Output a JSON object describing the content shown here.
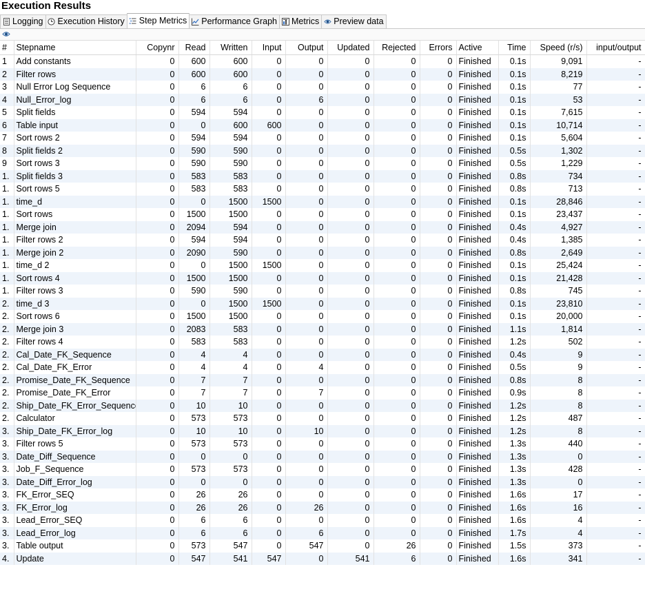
{
  "title": "Execution Results",
  "tabs": [
    {
      "label": "Logging",
      "icon": "logging-icon"
    },
    {
      "label": "Execution History",
      "icon": "history-icon"
    },
    {
      "label": "Step Metrics",
      "icon": "step-metrics-icon"
    },
    {
      "label": "Performance Graph",
      "icon": "graph-icon"
    },
    {
      "label": "Metrics",
      "icon": "metrics-icon"
    },
    {
      "label": "Preview data",
      "icon": "eye-icon"
    }
  ],
  "active_tab": "Step Metrics",
  "columns": [
    "#",
    "Stepname",
    "Copynr",
    "Read",
    "Written",
    "Input",
    "Output",
    "Updated",
    "Rejected",
    "Errors",
    "Active",
    "Time",
    "Speed (r/s)",
    "input/output"
  ],
  "rows": [
    [
      "1",
      "Add constants",
      "0",
      "600",
      "600",
      "0",
      "0",
      "0",
      "0",
      "0",
      "Finished",
      "0.1s",
      "9,091",
      "-"
    ],
    [
      "2",
      "Filter rows",
      "0",
      "600",
      "600",
      "0",
      "0",
      "0",
      "0",
      "0",
      "Finished",
      "0.1s",
      "8,219",
      "-"
    ],
    [
      "3",
      "Null Error Log Sequence",
      "0",
      "6",
      "6",
      "0",
      "0",
      "0",
      "0",
      "0",
      "Finished",
      "0.1s",
      "77",
      "-"
    ],
    [
      "4",
      "Null_Error_log",
      "0",
      "6",
      "6",
      "0",
      "6",
      "0",
      "0",
      "0",
      "Finished",
      "0.1s",
      "53",
      "-"
    ],
    [
      "5",
      "Split fields",
      "0",
      "594",
      "594",
      "0",
      "0",
      "0",
      "0",
      "0",
      "Finished",
      "0.1s",
      "7,615",
      "-"
    ],
    [
      "6",
      "Table input",
      "0",
      "0",
      "600",
      "600",
      "0",
      "0",
      "0",
      "0",
      "Finished",
      "0.1s",
      "10,714",
      "-"
    ],
    [
      "7",
      "Sort rows 2",
      "0",
      "594",
      "594",
      "0",
      "0",
      "0",
      "0",
      "0",
      "Finished",
      "0.1s",
      "5,604",
      "-"
    ],
    [
      "8",
      "Split fields 2",
      "0",
      "590",
      "590",
      "0",
      "0",
      "0",
      "0",
      "0",
      "Finished",
      "0.5s",
      "1,302",
      "-"
    ],
    [
      "9",
      "Sort rows 3",
      "0",
      "590",
      "590",
      "0",
      "0",
      "0",
      "0",
      "0",
      "Finished",
      "0.5s",
      "1,229",
      "-"
    ],
    [
      "1.",
      "Split fields 3",
      "0",
      "583",
      "583",
      "0",
      "0",
      "0",
      "0",
      "0",
      "Finished",
      "0.8s",
      "734",
      "-"
    ],
    [
      "1.",
      "Sort rows 5",
      "0",
      "583",
      "583",
      "0",
      "0",
      "0",
      "0",
      "0",
      "Finished",
      "0.8s",
      "713",
      "-"
    ],
    [
      "1.",
      "time_d",
      "0",
      "0",
      "1500",
      "1500",
      "0",
      "0",
      "0",
      "0",
      "Finished",
      "0.1s",
      "28,846",
      "-"
    ],
    [
      "1.",
      "Sort rows",
      "0",
      "1500",
      "1500",
      "0",
      "0",
      "0",
      "0",
      "0",
      "Finished",
      "0.1s",
      "23,437",
      "-"
    ],
    [
      "1.",
      "Merge join",
      "0",
      "2094",
      "594",
      "0",
      "0",
      "0",
      "0",
      "0",
      "Finished",
      "0.4s",
      "4,927",
      "-"
    ],
    [
      "1.",
      "Filter rows 2",
      "0",
      "594",
      "594",
      "0",
      "0",
      "0",
      "0",
      "0",
      "Finished",
      "0.4s",
      "1,385",
      "-"
    ],
    [
      "1.",
      "Merge join 2",
      "0",
      "2090",
      "590",
      "0",
      "0",
      "0",
      "0",
      "0",
      "Finished",
      "0.8s",
      "2,649",
      "-"
    ],
    [
      "1.",
      "time_d 2",
      "0",
      "0",
      "1500",
      "1500",
      "0",
      "0",
      "0",
      "0",
      "Finished",
      "0.1s",
      "25,424",
      "-"
    ],
    [
      "1.",
      "Sort rows 4",
      "0",
      "1500",
      "1500",
      "0",
      "0",
      "0",
      "0",
      "0",
      "Finished",
      "0.1s",
      "21,428",
      "-"
    ],
    [
      "1.",
      "Filter rows 3",
      "0",
      "590",
      "590",
      "0",
      "0",
      "0",
      "0",
      "0",
      "Finished",
      "0.8s",
      "745",
      "-"
    ],
    [
      "2.",
      "time_d 3",
      "0",
      "0",
      "1500",
      "1500",
      "0",
      "0",
      "0",
      "0",
      "Finished",
      "0.1s",
      "23,810",
      "-"
    ],
    [
      "2.",
      "Sort rows 6",
      "0",
      "1500",
      "1500",
      "0",
      "0",
      "0",
      "0",
      "0",
      "Finished",
      "0.1s",
      "20,000",
      "-"
    ],
    [
      "2.",
      "Merge join 3",
      "0",
      "2083",
      "583",
      "0",
      "0",
      "0",
      "0",
      "0",
      "Finished",
      "1.1s",
      "1,814",
      "-"
    ],
    [
      "2.",
      "Filter rows 4",
      "0",
      "583",
      "583",
      "0",
      "0",
      "0",
      "0",
      "0",
      "Finished",
      "1.2s",
      "502",
      "-"
    ],
    [
      "2.",
      "Cal_Date_FK_Sequence",
      "0",
      "4",
      "4",
      "0",
      "0",
      "0",
      "0",
      "0",
      "Finished",
      "0.4s",
      "9",
      "-"
    ],
    [
      "2.",
      "Cal_Date_FK_Error",
      "0",
      "4",
      "4",
      "0",
      "4",
      "0",
      "0",
      "0",
      "Finished",
      "0.5s",
      "9",
      "-"
    ],
    [
      "2.",
      "Promise_Date_FK_Sequence",
      "0",
      "7",
      "7",
      "0",
      "0",
      "0",
      "0",
      "0",
      "Finished",
      "0.8s",
      "8",
      "-"
    ],
    [
      "2.",
      "Promise_Date_FK_Error",
      "0",
      "7",
      "7",
      "0",
      "7",
      "0",
      "0",
      "0",
      "Finished",
      "0.9s",
      "8",
      "-"
    ],
    [
      "2.",
      "Ship_Date_FK_Error_Sequence",
      "0",
      "10",
      "10",
      "0",
      "0",
      "0",
      "0",
      "0",
      "Finished",
      "1.2s",
      "8",
      "-"
    ],
    [
      "2.",
      "Calculator",
      "0",
      "573",
      "573",
      "0",
      "0",
      "0",
      "0",
      "0",
      "Finished",
      "1.2s",
      "487",
      "-"
    ],
    [
      "3.",
      "Ship_Date_FK_Error_log",
      "0",
      "10",
      "10",
      "0",
      "10",
      "0",
      "0",
      "0",
      "Finished",
      "1.2s",
      "8",
      "-"
    ],
    [
      "3.",
      "Filter rows 5",
      "0",
      "573",
      "573",
      "0",
      "0",
      "0",
      "0",
      "0",
      "Finished",
      "1.3s",
      "440",
      "-"
    ],
    [
      "3.",
      "Date_Diff_Sequence",
      "0",
      "0",
      "0",
      "0",
      "0",
      "0",
      "0",
      "0",
      "Finished",
      "1.3s",
      "0",
      "-"
    ],
    [
      "3.",
      "Job_F_Sequence",
      "0",
      "573",
      "573",
      "0",
      "0",
      "0",
      "0",
      "0",
      "Finished",
      "1.3s",
      "428",
      "-"
    ],
    [
      "3.",
      "Date_Diff_Error_log",
      "0",
      "0",
      "0",
      "0",
      "0",
      "0",
      "0",
      "0",
      "Finished",
      "1.3s",
      "0",
      "-"
    ],
    [
      "3.",
      "FK_Error_SEQ",
      "0",
      "26",
      "26",
      "0",
      "0",
      "0",
      "0",
      "0",
      "Finished",
      "1.6s",
      "17",
      "-"
    ],
    [
      "3.",
      "FK_Error_log",
      "0",
      "26",
      "26",
      "0",
      "26",
      "0",
      "0",
      "0",
      "Finished",
      "1.6s",
      "16",
      "-"
    ],
    [
      "3.",
      "Lead_Error_SEQ",
      "0",
      "6",
      "6",
      "0",
      "0",
      "0",
      "0",
      "0",
      "Finished",
      "1.6s",
      "4",
      "-"
    ],
    [
      "3.",
      "Lead_Error_log",
      "0",
      "6",
      "6",
      "0",
      "6",
      "0",
      "0",
      "0",
      "Finished",
      "1.7s",
      "4",
      "-"
    ],
    [
      "3.",
      "Table output",
      "0",
      "573",
      "547",
      "0",
      "547",
      "0",
      "26",
      "0",
      "Finished",
      "1.5s",
      "373",
      "-"
    ],
    [
      "4.",
      "Update",
      "0",
      "547",
      "541",
      "547",
      "0",
      "541",
      "6",
      "0",
      "Finished",
      "1.6s",
      "341",
      "-"
    ]
  ]
}
